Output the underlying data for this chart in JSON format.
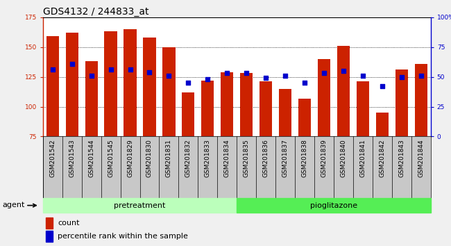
{
  "title": "GDS4132 / 244833_at",
  "samples": [
    "GSM201542",
    "GSM201543",
    "GSM201544",
    "GSM201545",
    "GSM201829",
    "GSM201830",
    "GSM201831",
    "GSM201832",
    "GSM201833",
    "GSM201834",
    "GSM201835",
    "GSM201836",
    "GSM201837",
    "GSM201838",
    "GSM201839",
    "GSM201840",
    "GSM201841",
    "GSM201842",
    "GSM201843",
    "GSM201844"
  ],
  "bar_heights": [
    159,
    162,
    138,
    163,
    165,
    158,
    150,
    112,
    122,
    129,
    128,
    121,
    115,
    107,
    140,
    151,
    121,
    95,
    131,
    136
  ],
  "blue_dots": [
    131,
    136,
    126,
    131,
    131,
    129,
    126,
    120,
    123,
    128,
    128,
    124,
    126,
    120,
    128,
    130,
    126,
    117,
    125,
    126
  ],
  "bar_color": "#cc2200",
  "dot_color": "#0000cc",
  "ylim_left": [
    75,
    175
  ],
  "ylim_right": [
    0,
    100
  ],
  "yticks_left": [
    75,
    100,
    125,
    150,
    175
  ],
  "yticks_right": [
    0,
    25,
    50,
    75,
    100
  ],
  "ytick_labels_right": [
    "0",
    "25",
    "50",
    "75",
    "100%"
  ],
  "pretreatment_count": 10,
  "group_labels": [
    "pretreatment",
    "pioglitazone"
  ],
  "group_color_pretreat": "#bbffbb",
  "group_color_pioglit": "#55ee55",
  "agent_label": "agent",
  "legend_count_label": "count",
  "legend_percentile_label": "percentile rank within the sample",
  "bar_width": 0.65,
  "fig_bg": "#f0f0f0",
  "plot_bg_color": "#ffffff",
  "xtick_area_bg": "#c8c8c8",
  "title_fontsize": 10,
  "tick_fontsize": 6.5,
  "label_fontsize": 8,
  "axis_color_left": "#cc2200",
  "axis_color_right": "#0000cc",
  "grid_yticks": [
    100,
    125,
    150
  ]
}
